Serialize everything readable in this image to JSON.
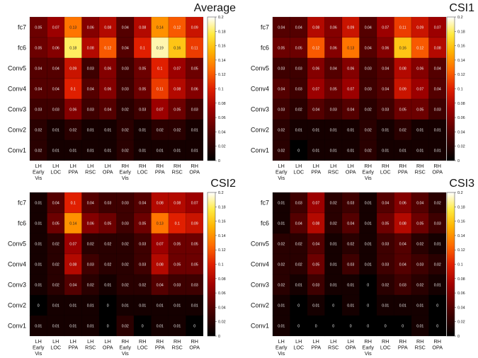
{
  "chart_data": [
    {
      "type": "heatmap",
      "title": "Average",
      "rows": [
        "fc7",
        "fc6",
        "Conv5",
        "Conv4",
        "Conv3",
        "Conv2",
        "Conv1"
      ],
      "columns": [
        [
          "LH",
          "Early",
          "Vis"
        ],
        [
          "LH",
          "LOC"
        ],
        [
          "LH",
          "PPA"
        ],
        [
          "LH",
          "RSC"
        ],
        [
          "LH",
          "OPA"
        ],
        [
          "RH",
          "Early",
          "Vis"
        ],
        [
          "RH",
          "LOC"
        ],
        [
          "RH",
          "PPA"
        ],
        [
          "RH",
          "RSC"
        ],
        [
          "RH",
          "OPA"
        ]
      ],
      "values": [
        [
          "0.05",
          "0.07",
          "0.13",
          "0.06",
          "0.08",
          "0.04",
          "0.08",
          "0.14",
          "0.12",
          "0.09"
        ],
        [
          "0.05",
          "0.06",
          "0.18",
          "0.08",
          "0.12",
          "0.04",
          "0.1",
          "0.19",
          "0.16",
          "0.11"
        ],
        [
          "0.04",
          "0.04",
          "0.09",
          "0.03",
          "0.06",
          "0.03",
          "0.05",
          "0.1",
          "0.07",
          "0.05"
        ],
        [
          "0.04",
          "0.04",
          "0.1",
          "0.04",
          "0.06",
          "0.03",
          "0.05",
          "0.11",
          "0.08",
          "0.06"
        ],
        [
          "0.03",
          "0.03",
          "0.06",
          "0.03",
          "0.04",
          "0.02",
          "0.03",
          "0.07",
          "0.05",
          "0.03"
        ],
        [
          "0.02",
          "0.01",
          "0.02",
          "0.01",
          "0.01",
          "0.02",
          "0.01",
          "0.02",
          "0.02",
          "0.01"
        ],
        [
          "0.02",
          "0.01",
          "0.01",
          "0.01",
          "0.01",
          "0.02",
          "0.01",
          "0.01",
          "0.01",
          "0.01"
        ]
      ],
      "colorbar": {
        "range": [
          0,
          0.2
        ],
        "ticks": [
          "0",
          "0.02",
          "0.04",
          "0.06",
          "0.08",
          "0.1",
          "0.12",
          "0.14",
          "0.16",
          "0.18",
          "0.2"
        ]
      },
      "colormap": "hot"
    },
    {
      "type": "heatmap",
      "title": "CSI1",
      "rows": [
        "fc7",
        "fc6",
        "Conv5",
        "Conv4",
        "Conv3",
        "Conv2",
        "Conv1"
      ],
      "columns": [
        [
          "LH",
          "Early",
          "Vis"
        ],
        [
          "LH",
          "LOC"
        ],
        [
          "LH",
          "PPA"
        ],
        [
          "LH",
          "RSC"
        ],
        [
          "LH",
          "OPA"
        ],
        [
          "RH",
          "Early",
          "Vis"
        ],
        [
          "RH",
          "LOC"
        ],
        [
          "RH",
          "PPA"
        ],
        [
          "RH",
          "RSC"
        ],
        [
          "RH",
          "OPA"
        ]
      ],
      "values": [
        [
          "0.04",
          "0.04",
          "0.08",
          "0.06",
          "0.09",
          "0.04",
          "0.07",
          "0.11",
          "0.09",
          "0.07"
        ],
        [
          "0.05",
          "0.05",
          "0.12",
          "0.06",
          "0.13",
          "0.04",
          "0.06",
          "0.16",
          "0.12",
          "0.08"
        ],
        [
          "0.03",
          "0.03",
          "0.06",
          "0.04",
          "0.06",
          "0.03",
          "0.04",
          "0.08",
          "0.06",
          "0.04"
        ],
        [
          "0.04",
          "0.03",
          "0.07",
          "0.05",
          "0.07",
          "0.03",
          "0.04",
          "0.09",
          "0.07",
          "0.04"
        ],
        [
          "0.03",
          "0.02",
          "0.04",
          "0.03",
          "0.04",
          "0.02",
          "0.03",
          "0.05",
          "0.05",
          "0.03"
        ],
        [
          "0.02",
          "0.01",
          "0.01",
          "0.01",
          "0.01",
          "0.02",
          "0.01",
          "0.02",
          "0.01",
          "0.01"
        ],
        [
          "0.02",
          "0",
          "0.01",
          "0.01",
          "0.01",
          "0.02",
          "0.01",
          "0.01",
          "0.01",
          "0.01"
        ]
      ],
      "colorbar": {
        "range": [
          0,
          0.2
        ],
        "ticks": [
          "0",
          "0.02",
          "0.04",
          "0.06",
          "0.08",
          "0.1",
          "0.12",
          "0.14",
          "0.16",
          "0.18",
          "0.2"
        ]
      },
      "colormap": "hot"
    },
    {
      "type": "heatmap",
      "title": "CSI2",
      "rows": [
        "fc7",
        "fc6",
        "Conv5",
        "Conv4",
        "Conv3",
        "Conv2",
        "Conv1"
      ],
      "columns": [
        [
          "LH",
          "Early",
          "Vis"
        ],
        [
          "LH",
          "LOC"
        ],
        [
          "LH",
          "PPA"
        ],
        [
          "LH",
          "RSC"
        ],
        [
          "LH",
          "OPA"
        ],
        [
          "RH",
          "Early",
          "Vis"
        ],
        [
          "RH",
          "LOC"
        ],
        [
          "RH",
          "PPA"
        ],
        [
          "RH",
          "RSC"
        ],
        [
          "RH",
          "OPA"
        ]
      ],
      "values": [
        [
          "0.01",
          "0.04",
          "0.1",
          "0.04",
          "0.03",
          "0.03",
          "0.04",
          "0.08",
          "0.08",
          "0.07"
        ],
        [
          "0.01",
          "0.05",
          "0.14",
          "0.06",
          "0.05",
          "0.03",
          "0.05",
          "0.13",
          "0.1",
          "0.09"
        ],
        [
          "0.01",
          "0.02",
          "0.07",
          "0.02",
          "0.02",
          "0.02",
          "0.03",
          "0.07",
          "0.05",
          "0.05"
        ],
        [
          "0.01",
          "0.02",
          "0.08",
          "0.03",
          "0.02",
          "0.02",
          "0.03",
          "0.08",
          "0.05",
          "0.05"
        ],
        [
          "0.01",
          "0.02",
          "0.04",
          "0.02",
          "0.01",
          "0.02",
          "0.02",
          "0.04",
          "0.03",
          "0.03"
        ],
        [
          "0",
          "0.01",
          "0.01",
          "0.01",
          "0",
          "0.01",
          "0.01",
          "0.01",
          "0.01",
          "0.01"
        ],
        [
          "0.01",
          "0.01",
          "0.01",
          "0.01",
          "0",
          "0.02",
          "0",
          "0.01",
          "0.01",
          "0"
        ]
      ],
      "colorbar": {
        "range": [
          0,
          0.2
        ],
        "ticks": [
          "0",
          "0.02",
          "0.04",
          "0.06",
          "0.08",
          "0.1",
          "0.12",
          "0.14",
          "0.16",
          "0.18",
          "0.2"
        ]
      },
      "colormap": "hot"
    },
    {
      "type": "heatmap",
      "title": "CSI3",
      "rows": [
        "fc7",
        "fc6",
        "Conv5",
        "Conv4",
        "Conv3",
        "Conv2",
        "Conv1"
      ],
      "columns": [
        [
          "LH",
          "Early",
          "Vis"
        ],
        [
          "LH",
          "LOC"
        ],
        [
          "LH",
          "PPA"
        ],
        [
          "LH",
          "RSC"
        ],
        [
          "LH",
          "OPA"
        ],
        [
          "RH",
          "Early",
          "Vis"
        ],
        [
          "RH",
          "LOC"
        ],
        [
          "RH",
          "PPA"
        ],
        [
          "RH",
          "RSC"
        ],
        [
          "RH",
          "OPA"
        ]
      ],
      "values": [
        [
          "0.01",
          "0.03",
          "0.07",
          "0.02",
          "0.03",
          "0.01",
          "0.04",
          "0.06",
          "0.04",
          "0.02"
        ],
        [
          "0.01",
          "0.04",
          "0.08",
          "0.02",
          "0.04",
          "0.01",
          "0.05",
          "0.08",
          "0.05",
          "0.03"
        ],
        [
          "0.02",
          "0.02",
          "0.04",
          "0.01",
          "0.02",
          "0.01",
          "0.03",
          "0.04",
          "0.02",
          "0.01"
        ],
        [
          "0.02",
          "0.02",
          "0.05",
          "0.01",
          "0.03",
          "0.01",
          "0.03",
          "0.04",
          "0.03",
          "0.02"
        ],
        [
          "0.02",
          "0.01",
          "0.03",
          "0.01",
          "0.01",
          "0",
          "0.02",
          "0.03",
          "0.02",
          "0.01"
        ],
        [
          "0.01",
          "0",
          "0.01",
          "0",
          "0.01",
          "0",
          "0.01",
          "0.01",
          "0.01",
          "0"
        ],
        [
          "0.01",
          "0",
          "0",
          "0",
          "0",
          "0",
          "0",
          "0",
          "0.01",
          "0"
        ]
      ],
      "colorbar": {
        "range": [
          0,
          0.2
        ],
        "ticks": [
          "0",
          "0.02",
          "0.04",
          "0.06",
          "0.08",
          "0.1",
          "0.12",
          "0.14",
          "0.16",
          "0.18",
          "0.2"
        ]
      },
      "colormap": "hot"
    }
  ]
}
